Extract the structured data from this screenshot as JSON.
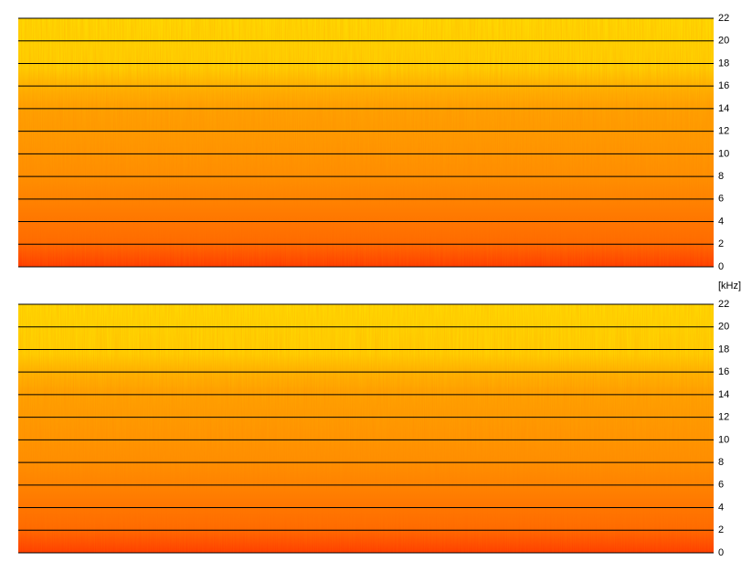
{
  "chart_data": [
    {
      "type": "spectrogram",
      "ylim": [
        0,
        22
      ],
      "yticks": [
        0,
        2,
        4,
        6,
        8,
        10,
        12,
        14,
        16,
        18,
        20,
        22
      ],
      "grid": true
    },
    {
      "type": "spectrogram",
      "ylabel": "[kHz]",
      "ylim": [
        0,
        22
      ],
      "yticks": [
        0,
        2,
        4,
        6,
        8,
        10,
        12,
        14,
        16,
        18,
        20,
        22
      ],
      "grid": true
    }
  ]
}
